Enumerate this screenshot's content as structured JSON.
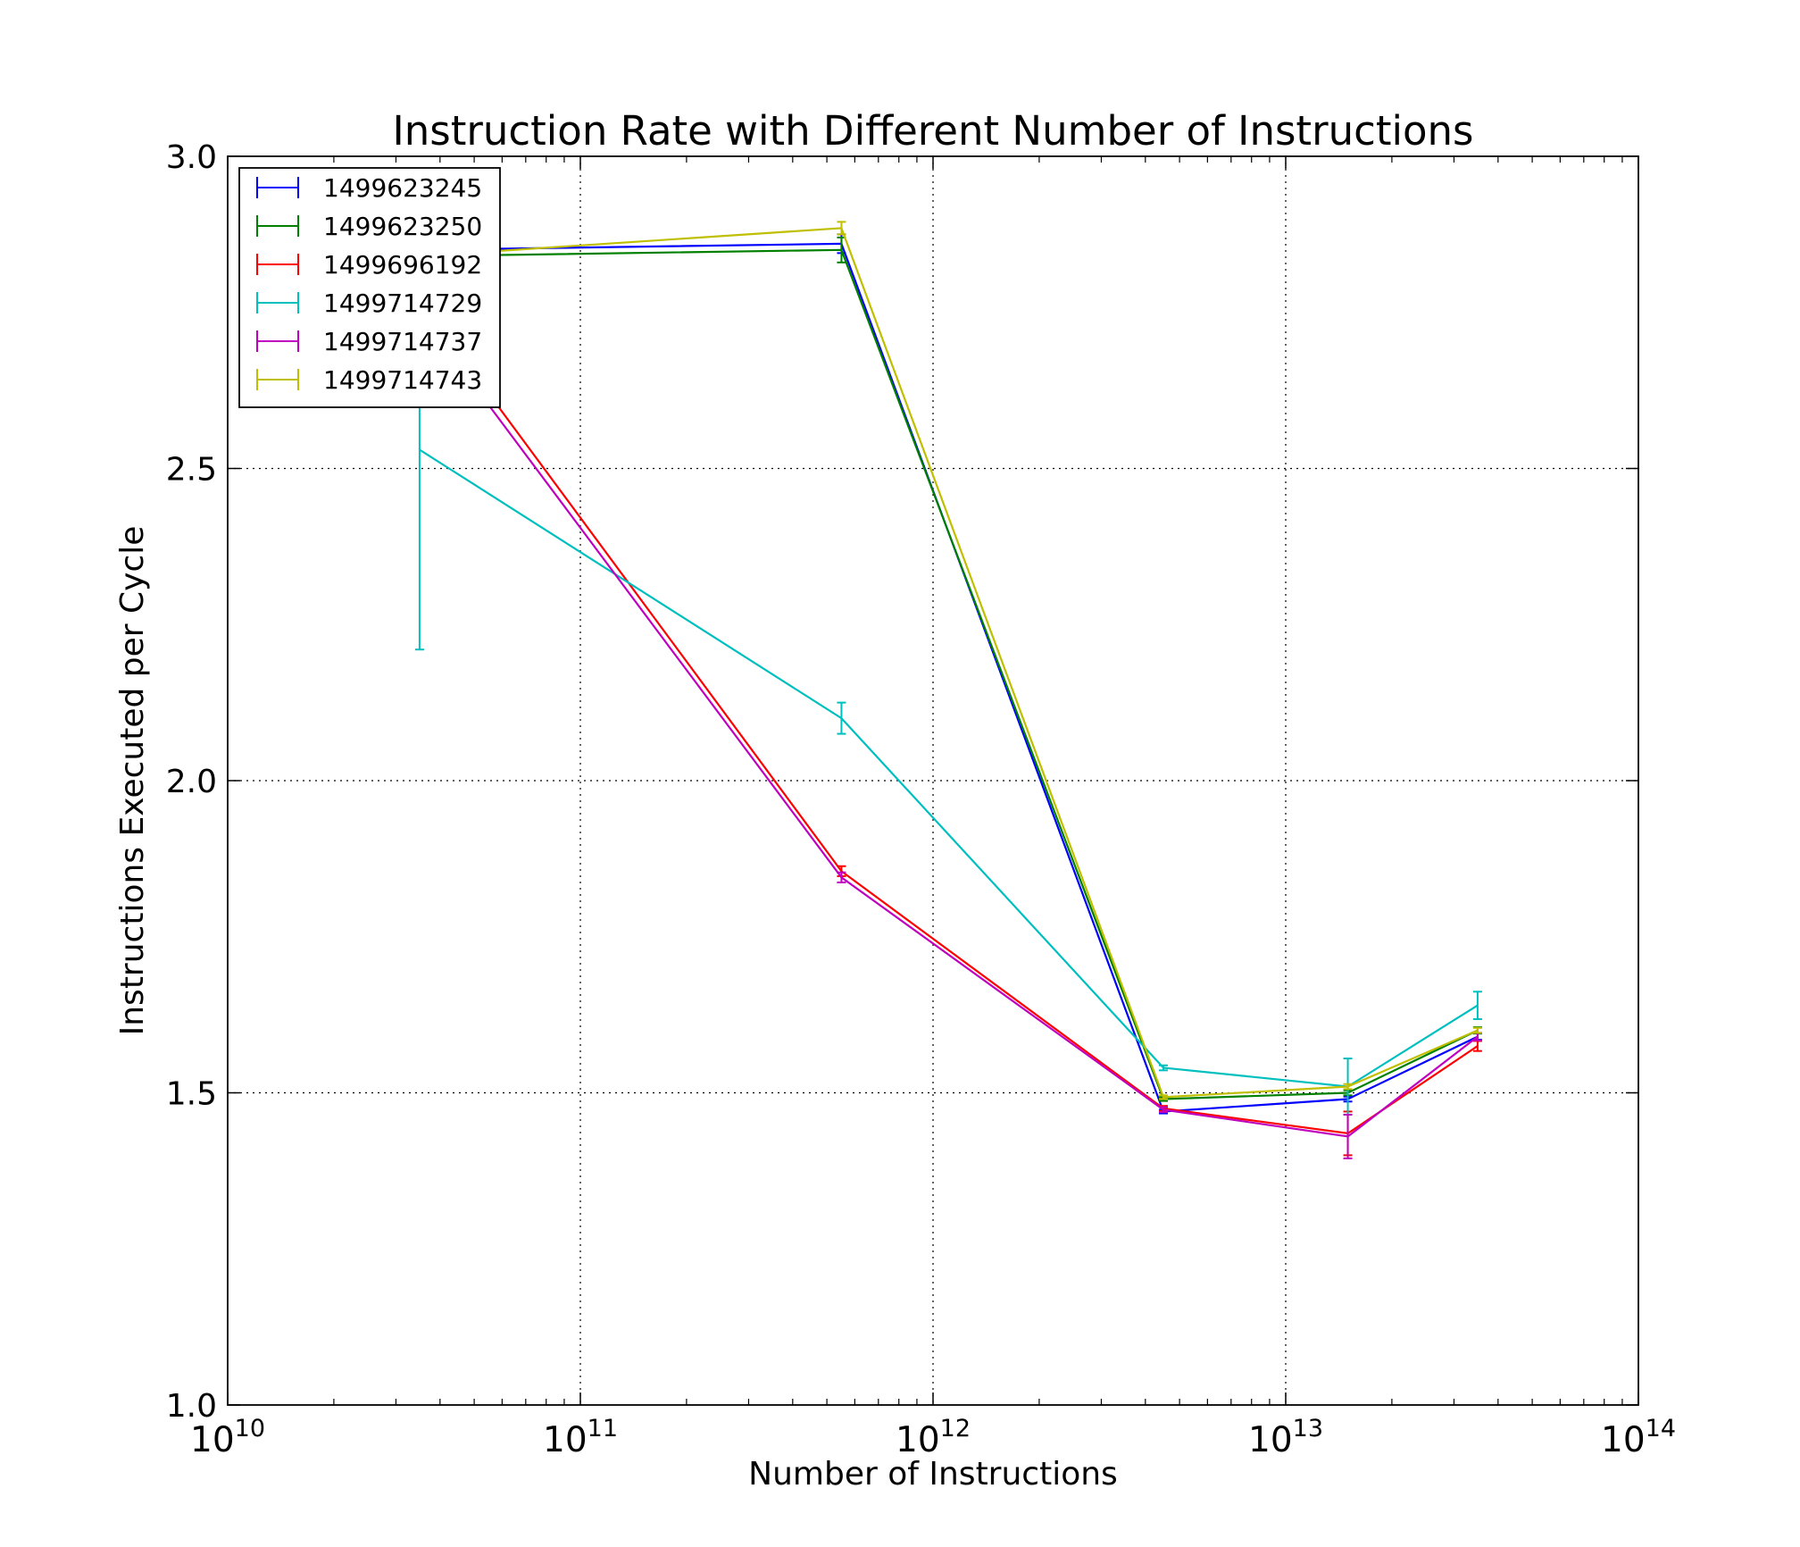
{
  "chart_data": {
    "type": "line",
    "title": "Instruction Rate with Different Number of Instructions",
    "xlabel": "Number of Instructions",
    "ylabel": "Instructions Executed per Cycle",
    "xscale": "log",
    "xlim": [
      10000000000.0,
      100000000000000.0
    ],
    "ylim": [
      1.0,
      3.0
    ],
    "x_ticks": [
      {
        "base": "10",
        "exp": "10",
        "value": 10000000000.0
      },
      {
        "base": "10",
        "exp": "11",
        "value": 100000000000.0
      },
      {
        "base": "10",
        "exp": "12",
        "value": 1000000000000.0
      },
      {
        "base": "10",
        "exp": "13",
        "value": 10000000000000.0
      },
      {
        "base": "10",
        "exp": "14",
        "value": 100000000000000.0
      }
    ],
    "y_ticks": [
      {
        "label": "1.0",
        "value": 1.0
      },
      {
        "label": "1.5",
        "value": 1.5
      },
      {
        "label": "2.0",
        "value": 2.0
      },
      {
        "label": "2.5",
        "value": 2.5
      },
      {
        "label": "3.0",
        "value": 3.0
      }
    ],
    "grid": true,
    "legend_position": "top-left",
    "x": [
      35000000000.0,
      550000000000.0,
      4500000000000.0,
      15000000000000.0,
      35000000000000.0
    ],
    "series": [
      {
        "name": "1499623245",
        "color": "#0000ff",
        "values": [
          2.85,
          2.86,
          1.47,
          1.49,
          1.59
        ],
        "errors": [
          0.004,
          0.015,
          0.003,
          0.004,
          0.005
        ]
      },
      {
        "name": "1499623250",
        "color": "#008000",
        "values": [
          2.84,
          2.85,
          1.49,
          1.5,
          1.6
        ],
        "errors": [
          0.004,
          0.02,
          0.003,
          0.004,
          0.005
        ]
      },
      {
        "name": "1499696192",
        "color": "#ff0000",
        "values": [
          2.77,
          1.855,
          1.475,
          1.435,
          1.575
        ],
        "errors": [
          0.004,
          0.008,
          0.004,
          0.035,
          0.008
        ]
      },
      {
        "name": "1499714729",
        "color": "#00bfbf",
        "values": [
          2.53,
          2.1,
          1.54,
          1.51,
          1.64
        ],
        "errors": [
          0.32,
          0.025,
          0.004,
          0.045,
          0.022
        ]
      },
      {
        "name": "1499714737",
        "color": "#bf00bf",
        "values": [
          2.75,
          1.845,
          1.473,
          1.43,
          1.59
        ],
        "errors": [
          0.004,
          0.008,
          0.004,
          0.035,
          0.006
        ]
      },
      {
        "name": "1499714743",
        "color": "#bfbf00",
        "values": [
          2.84,
          2.885,
          1.493,
          1.51,
          1.6
        ],
        "errors": [
          0.004,
          0.01,
          0.003,
          0.004,
          0.004
        ]
      }
    ]
  }
}
